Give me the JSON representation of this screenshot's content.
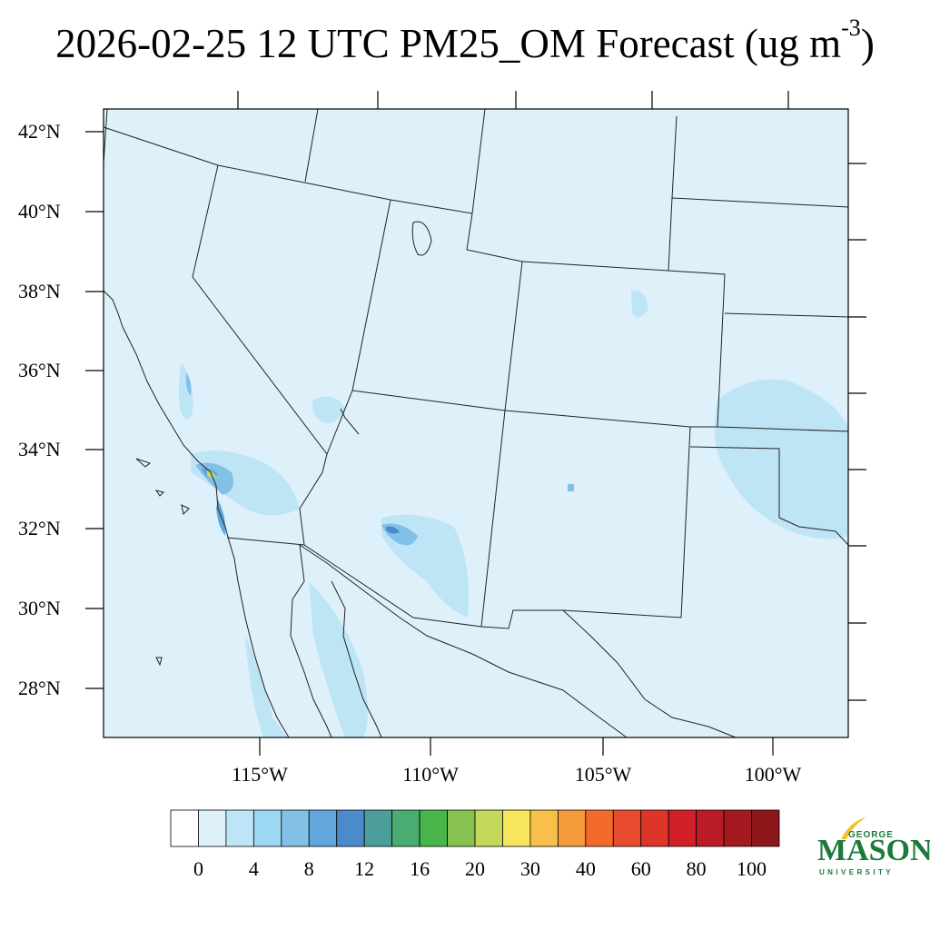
{
  "title": {
    "main": "2026-02-25 12 UTC PM25_OM Forecast (ug m",
    "superscript": "-3",
    "close": ")"
  },
  "map": {
    "background_color": "#def1fb",
    "lat_labels": [
      "42°N",
      "40°N",
      "38°N",
      "36°N",
      "34°N",
      "32°N",
      "30°N",
      "28°N"
    ],
    "lon_labels": [
      "115°W",
      "110°W",
      "105°W",
      "100°W"
    ]
  },
  "colorbar": {
    "colors": [
      "#ffffff",
      "#def1fb",
      "#bde5f6",
      "#9cd7f3",
      "#82c0e6",
      "#62a7db",
      "#4b8acb",
      "#4c9e9b",
      "#4aac72",
      "#48b64b",
      "#86c24d",
      "#c4d85a",
      "#f8e65e",
      "#f8c04a",
      "#f59b3c",
      "#f46a2d",
      "#e84c2f",
      "#dd3629",
      "#d01f26",
      "#bb1b25",
      "#a4191f",
      "#8d161b"
    ],
    "labels": [
      "0",
      "4",
      "8",
      "12",
      "16",
      "20",
      "30",
      "40",
      "60",
      "80",
      "100"
    ]
  },
  "logo": {
    "top": "GEORGE",
    "main": "MASON",
    "bottom": "UNIVERSITY"
  }
}
